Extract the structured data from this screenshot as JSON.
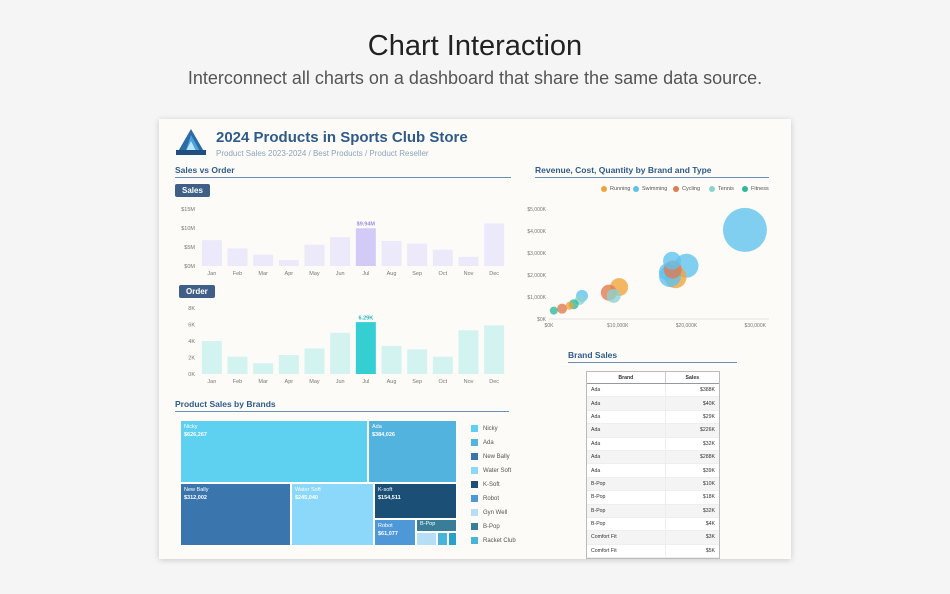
{
  "hero": {
    "title": "Chart Interaction",
    "subtitle": "Interconnect all charts on a dashboard that share the same data source."
  },
  "dashboard": {
    "title": "2024 Products in Sports Club Store",
    "subtitle": "Product Sales 2023-2024 / Best Products / Product Reseller"
  },
  "sales_section": {
    "title": "Sales vs Order",
    "sales_pill": "Sales",
    "order_pill": "Order"
  },
  "chart_data": [
    {
      "type": "bar",
      "name_key": "sales",
      "title": "Sales",
      "categories": [
        "Jan",
        "Feb",
        "Mar",
        "Apr",
        "May",
        "Jun",
        "Jul",
        "Aug",
        "Sep",
        "Oct",
        "Nov",
        "Dec"
      ],
      "values": [
        6.8,
        4.6,
        3.0,
        1.6,
        5.6,
        7.6,
        9.94,
        6.6,
        5.9,
        4.3,
        2.4,
        11.2
      ],
      "highlight_index": 6,
      "highlight_label": "$9.94M",
      "y_ticks": [
        "$0M",
        "$5M",
        "$10M",
        "$15M"
      ],
      "ylim": [
        0,
        15
      ],
      "colors": {
        "bar": "#ece9fb",
        "highlight": "#d2cbf7"
      }
    },
    {
      "type": "bar",
      "name_key": "order",
      "title": "Order",
      "categories": [
        "Jan",
        "Feb",
        "Mar",
        "Apr",
        "May",
        "Jun",
        "Jul",
        "Aug",
        "Sep",
        "Oct",
        "Nov",
        "Dec"
      ],
      "values": [
        4.0,
        2.1,
        1.3,
        2.3,
        3.1,
        5.0,
        6.29,
        3.4,
        3.0,
        2.1,
        5.3,
        5.9
      ],
      "highlight_index": 6,
      "highlight_label": "6.29K",
      "y_ticks": [
        "0K",
        "2K",
        "4K",
        "6K",
        "8K"
      ],
      "ylim": [
        0,
        8
      ],
      "colors": {
        "bar": "#d3f3f1",
        "highlight": "#35cfd3"
      }
    },
    {
      "type": "scatter",
      "name_key": "revenue",
      "title": "Revenue, Cost, Quantity by Brand and Type",
      "x_ticks": [
        "$0K",
        "$10,000K",
        "$20,000K",
        "$30,000K"
      ],
      "xlim": [
        0,
        32000
      ],
      "y_ticks": [
        "$0K",
        "$1,000K",
        "$2,000K",
        "$3,000K",
        "$4,000K",
        "$5,000K"
      ],
      "ylim": [
        0,
        5000
      ],
      "legend": [
        {
          "label": "Running",
          "color": "#f0a33a"
        },
        {
          "label": "Swimming",
          "color": "#5dc3ee"
        },
        {
          "label": "Cycling",
          "color": "#e07a4f"
        },
        {
          "label": "Tennis",
          "color": "#8cd3d0"
        },
        {
          "label": "Fitness",
          "color": "#2db89a"
        }
      ],
      "points": [
        {
          "x": 28500,
          "y": 4050,
          "size": 22,
          "type": "Swimming"
        },
        {
          "x": 20000,
          "y": 2420,
          "size": 12,
          "type": "Swimming"
        },
        {
          "x": 18400,
          "y": 1900,
          "size": 11,
          "type": "Running"
        },
        {
          "x": 17600,
          "y": 1950,
          "size": 11,
          "type": "Swimming"
        },
        {
          "x": 17300,
          "y": 2140,
          "size": 9,
          "type": "Swimming"
        },
        {
          "x": 18000,
          "y": 2250,
          "size": 9,
          "type": "Cycling"
        },
        {
          "x": 17900,
          "y": 2650,
          "size": 9,
          "type": "Swimming"
        },
        {
          "x": 10200,
          "y": 1450,
          "size": 9,
          "type": "Running"
        },
        {
          "x": 8700,
          "y": 1200,
          "size": 8,
          "type": "Cycling"
        },
        {
          "x": 9400,
          "y": 1050,
          "size": 7,
          "type": "Tennis"
        },
        {
          "x": 4800,
          "y": 1050,
          "size": 6,
          "type": "Swimming"
        },
        {
          "x": 4500,
          "y": 870,
          "size": 5,
          "type": "Tennis"
        },
        {
          "x": 3600,
          "y": 670,
          "size": 5,
          "type": "Fitness"
        },
        {
          "x": 1900,
          "y": 470,
          "size": 5,
          "type": "Cycling"
        },
        {
          "x": 700,
          "y": 380,
          "size": 4,
          "type": "Fitness"
        },
        {
          "x": 3000,
          "y": 600,
          "size": 4,
          "type": "Running"
        }
      ]
    }
  ],
  "brands_section": {
    "title": "Product Sales by Brands",
    "treemap": [
      {
        "name": "Nicky",
        "value": "$626,267",
        "color": "#5ed0f0"
      },
      {
        "name": "Ada",
        "value": "$384,026",
        "color": "#52b3de"
      },
      {
        "name": "New Bally",
        "value": "$312,002",
        "color": "#3a76ad"
      },
      {
        "name": "Water Soft",
        "value": "$245,040",
        "color": "#8cd8fa"
      },
      {
        "name": "K-soft",
        "value": "$154,511",
        "color": "#1b4f76"
      },
      {
        "name": "Robot",
        "value": "$61,077",
        "color": "#4e98d8"
      },
      {
        "name": "B-Pop",
        "value": "",
        "color": "#3a7d98"
      }
    ],
    "legend": [
      {
        "label": "Nicky",
        "color": "#5ed0f0"
      },
      {
        "label": "Ada",
        "color": "#52b3de"
      },
      {
        "label": "New Bally",
        "color": "#3a76ad"
      },
      {
        "label": "Water Soft",
        "color": "#8cd8fa"
      },
      {
        "label": "K-Soft",
        "color": "#1b4f76"
      },
      {
        "label": "Robot",
        "color": "#4e98d8"
      },
      {
        "label": "Gyn Well",
        "color": "#b6dff6"
      },
      {
        "label": "B-Pop",
        "color": "#3a7d98"
      },
      {
        "label": "Racket Club",
        "color": "#48b4d8"
      }
    ]
  },
  "brand_table": {
    "title": "Brand Sales",
    "headers": [
      "Brand",
      "Sales"
    ],
    "rows": [
      [
        "Ada",
        "$388K"
      ],
      [
        "Ada",
        "$40K"
      ],
      [
        "Ada",
        "$29K"
      ],
      [
        "Ada",
        "$226K"
      ],
      [
        "Ada",
        "$32K"
      ],
      [
        "Ada",
        "$288K"
      ],
      [
        "Ada",
        "$39K"
      ],
      [
        "B-Pop",
        "$10K"
      ],
      [
        "B-Pop",
        "$18K"
      ],
      [
        "B-Pop",
        "$32K"
      ],
      [
        "B-Pop",
        "$4K"
      ],
      [
        "Comfort Fit",
        "$3K"
      ],
      [
        "Comfort Fit",
        "$5K"
      ]
    ]
  },
  "colors": {
    "accent": "#2e5b8a",
    "pill": "#3f5f86"
  }
}
